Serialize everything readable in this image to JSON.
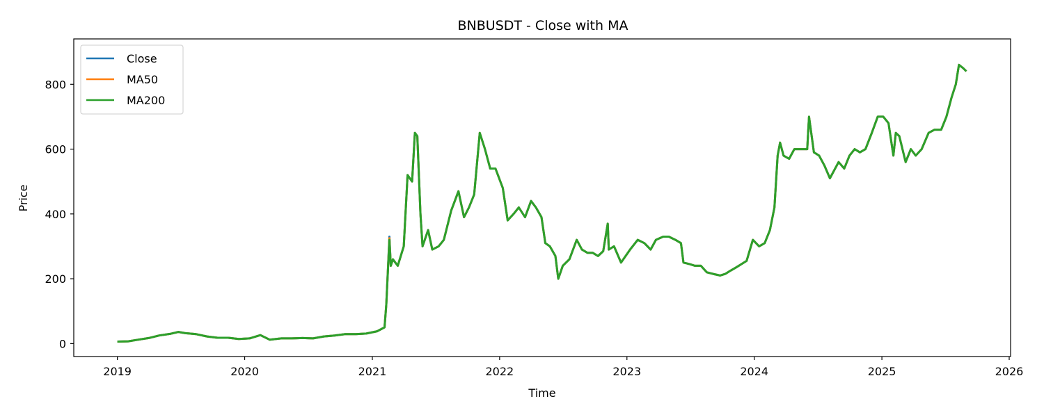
{
  "chart_data": {
    "type": "line",
    "title": "BNBUSDT - Close with MA",
    "xlabel": "Time",
    "ylabel": "Price",
    "xlim": [
      "2018-08-29",
      "2026-01-05"
    ],
    "ylim": [
      -40,
      940
    ],
    "x_ticks": [
      "2019",
      "2020",
      "2021",
      "2022",
      "2023",
      "2024",
      "2025",
      "2026"
    ],
    "y_ticks": [
      0,
      200,
      400,
      600,
      800
    ],
    "grid": false,
    "legend": "top-left",
    "colors": {
      "Close": "#1f77b4",
      "MA50": "#ff7f0e",
      "MA200": "#2ca02c"
    },
    "series": [
      {
        "name": "Close",
        "x": [
          "2019-01-01",
          "2019-02-01",
          "2019-03-01",
          "2019-04-01",
          "2019-05-01",
          "2019-06-01",
          "2019-06-25",
          "2019-07-15",
          "2019-08-15",
          "2019-09-15",
          "2019-10-15",
          "2019-11-15",
          "2019-12-15",
          "2020-01-15",
          "2020-02-15",
          "2020-03-13",
          "2020-04-15",
          "2020-05-15",
          "2020-06-15",
          "2020-07-15",
          "2020-08-15",
          "2020-09-15",
          "2020-10-15",
          "2020-11-15",
          "2020-12-15",
          "2021-01-15",
          "2021-02-05",
          "2021-02-10",
          "2021-02-19",
          "2021-02-23",
          "2021-03-01",
          "2021-03-15",
          "2021-04-01",
          "2021-04-12",
          "2021-04-25",
          "2021-05-03",
          "2021-05-10",
          "2021-05-19",
          "2021-05-25",
          "2021-06-10",
          "2021-06-22",
          "2021-07-10",
          "2021-07-25",
          "2021-08-15",
          "2021-09-05",
          "2021-09-21",
          "2021-10-05",
          "2021-10-20",
          "2021-11-05",
          "2021-11-20",
          "2021-12-05",
          "2021-12-20",
          "2022-01-10",
          "2022-01-24",
          "2022-02-10",
          "2022-02-25",
          "2022-03-15",
          "2022-04-01",
          "2022-04-15",
          "2022-05-01",
          "2022-05-12",
          "2022-05-25",
          "2022-06-10",
          "2022-06-18",
          "2022-07-01",
          "2022-07-20",
          "2022-08-10",
          "2022-08-25",
          "2022-09-10",
          "2022-09-25",
          "2022-10-10",
          "2022-10-25",
          "2022-11-07",
          "2022-11-10",
          "2022-11-25",
          "2022-12-15",
          "2023-01-10",
          "2023-02-01",
          "2023-02-20",
          "2023-03-10",
          "2023-03-25",
          "2023-04-15",
          "2023-05-01",
          "2023-05-20",
          "2023-06-05",
          "2023-06-12",
          "2023-06-30",
          "2023-07-15",
          "2023-08-01",
          "2023-08-18",
          "2023-09-05",
          "2023-09-25",
          "2023-10-10",
          "2023-10-25",
          "2023-11-10",
          "2023-11-25",
          "2023-12-10",
          "2023-12-28",
          "2024-01-15",
          "2024-01-31",
          "2024-02-15",
          "2024-02-28",
          "2024-03-08",
          "2024-03-15",
          "2024-03-25",
          "2024-04-10",
          "2024-04-25",
          "2024-05-15",
          "2024-06-01",
          "2024-06-06",
          "2024-06-20",
          "2024-07-05",
          "2024-07-20",
          "2024-08-05",
          "2024-08-15",
          "2024-08-30",
          "2024-09-15",
          "2024-09-30",
          "2024-10-15",
          "2024-10-30",
          "2024-11-15",
          "2024-12-03",
          "2024-12-20",
          "2025-01-05",
          "2025-01-20",
          "2025-02-03",
          "2025-02-10",
          "2025-02-20",
          "2025-03-10",
          "2025-03-25",
          "2025-04-08",
          "2025-04-25",
          "2025-05-15",
          "2025-06-01",
          "2025-06-20",
          "2025-07-05",
          "2025-07-20",
          "2025-08-01",
          "2025-08-10",
          "2025-08-22",
          "2025-08-31"
        ],
        "y": [
          6,
          7,
          12,
          17,
          25,
          30,
          36,
          32,
          29,
          22,
          18,
          18,
          14,
          16,
          26,
          12,
          16,
          16,
          17,
          16,
          22,
          25,
          29,
          29,
          31,
          38,
          50,
          120,
          330,
          240,
          260,
          240,
          300,
          520,
          500,
          650,
          640,
          400,
          300,
          350,
          290,
          300,
          320,
          410,
          470,
          390,
          420,
          460,
          650,
          600,
          540,
          540,
          480,
          380,
          400,
          420,
          390,
          440,
          420,
          390,
          310,
          300,
          270,
          200,
          240,
          260,
          320,
          290,
          280,
          280,
          270,
          285,
          370,
          290,
          300,
          250,
          290,
          320,
          310,
          290,
          320,
          330,
          330,
          320,
          310,
          250,
          245,
          240,
          240,
          220,
          215,
          210,
          215,
          225,
          235,
          245,
          255,
          320,
          300,
          310,
          350,
          420,
          580,
          620,
          580,
          570,
          600,
          600,
          600,
          700,
          590,
          580,
          550,
          510,
          530,
          560,
          540,
          580,
          600,
          590,
          600,
          650,
          700,
          700,
          680,
          580,
          650,
          640,
          560,
          600,
          580,
          600,
          650,
          660,
          660,
          700,
          760,
          800,
          860,
          850,
          840
        ]
      },
      {
        "name": "MA50",
        "x": [
          "2019-01-01",
          "2019-02-01",
          "2019-03-01",
          "2019-04-01",
          "2019-05-01",
          "2019-06-01",
          "2019-06-25",
          "2019-07-15",
          "2019-08-15",
          "2019-09-15",
          "2019-10-15",
          "2019-11-15",
          "2019-12-15",
          "2020-01-15",
          "2020-02-15",
          "2020-03-13",
          "2020-04-15",
          "2020-05-15",
          "2020-06-15",
          "2020-07-15",
          "2020-08-15",
          "2020-09-15",
          "2020-10-15",
          "2020-11-15",
          "2020-12-15",
          "2021-01-15",
          "2021-02-05",
          "2021-02-10",
          "2021-02-19",
          "2021-02-23",
          "2021-03-01",
          "2021-03-15",
          "2021-04-01",
          "2021-04-12",
          "2021-04-25",
          "2021-05-03",
          "2021-05-10",
          "2021-05-19",
          "2021-05-25",
          "2021-06-10",
          "2021-06-22",
          "2021-07-10",
          "2021-07-25",
          "2021-08-15",
          "2021-09-05",
          "2021-09-21",
          "2021-10-05",
          "2021-10-20",
          "2021-11-05",
          "2021-11-20",
          "2021-12-05",
          "2021-12-20",
          "2022-01-10",
          "2022-01-24",
          "2022-02-10",
          "2022-02-25",
          "2022-03-15",
          "2022-04-01",
          "2022-04-15",
          "2022-05-01",
          "2022-05-12",
          "2022-05-25",
          "2022-06-10",
          "2022-06-18",
          "2022-07-01",
          "2022-07-20",
          "2022-08-10",
          "2022-08-25",
          "2022-09-10",
          "2022-09-25",
          "2022-10-10",
          "2022-10-25",
          "2022-11-07",
          "2022-11-10",
          "2022-11-25",
          "2022-12-15",
          "2023-01-10",
          "2023-02-01",
          "2023-02-20",
          "2023-03-10",
          "2023-03-25",
          "2023-04-15",
          "2023-05-01",
          "2023-05-20",
          "2023-06-05",
          "2023-06-12",
          "2023-06-30",
          "2023-07-15",
          "2023-08-01",
          "2023-08-18",
          "2023-09-05",
          "2023-09-25",
          "2023-10-10",
          "2023-10-25",
          "2023-11-10",
          "2023-11-25",
          "2023-12-10",
          "2023-12-28",
          "2024-01-15",
          "2024-01-31",
          "2024-02-15",
          "2024-02-28",
          "2024-03-08",
          "2024-03-15",
          "2024-03-25",
          "2024-04-10",
          "2024-04-25",
          "2024-05-15",
          "2024-06-01",
          "2024-06-06",
          "2024-06-20",
          "2024-07-05",
          "2024-07-20",
          "2024-08-05",
          "2024-08-15",
          "2024-08-30",
          "2024-09-15",
          "2024-09-30",
          "2024-10-15",
          "2024-10-30",
          "2024-11-15",
          "2024-12-03",
          "2024-12-20",
          "2025-01-05",
          "2025-01-20",
          "2025-02-03",
          "2025-02-10",
          "2025-02-20",
          "2025-03-10",
          "2025-03-25",
          "2025-04-08",
          "2025-04-25",
          "2025-05-15",
          "2025-06-01",
          "2025-06-20",
          "2025-07-05",
          "2025-07-20",
          "2025-08-01",
          "2025-08-10",
          "2025-08-22",
          "2025-08-31"
        ],
        "y": [
          6,
          7,
          12,
          17,
          25,
          30,
          36,
          32,
          29,
          22,
          18,
          18,
          14,
          16,
          26,
          12,
          16,
          16,
          17,
          16,
          22,
          25,
          29,
          29,
          31,
          38,
          50,
          120,
          325,
          240,
          260,
          240,
          300,
          520,
          500,
          650,
          640,
          400,
          300,
          350,
          290,
          300,
          320,
          410,
          470,
          390,
          420,
          460,
          650,
          600,
          540,
          540,
          480,
          380,
          400,
          420,
          390,
          440,
          420,
          390,
          310,
          300,
          270,
          200,
          240,
          260,
          320,
          290,
          280,
          280,
          270,
          285,
          370,
          290,
          300,
          250,
          290,
          320,
          310,
          290,
          320,
          330,
          330,
          320,
          310,
          250,
          245,
          240,
          240,
          220,
          215,
          210,
          215,
          225,
          235,
          245,
          255,
          320,
          300,
          310,
          350,
          420,
          580,
          620,
          580,
          570,
          600,
          600,
          600,
          700,
          590,
          580,
          550,
          510,
          530,
          560,
          540,
          580,
          600,
          590,
          600,
          650,
          700,
          700,
          680,
          580,
          650,
          640,
          560,
          600,
          580,
          600,
          650,
          660,
          660,
          700,
          760,
          800,
          860,
          850,
          840
        ]
      },
      {
        "name": "MA200",
        "x": [
          "2019-01-01",
          "2019-02-01",
          "2019-03-01",
          "2019-04-01",
          "2019-05-01",
          "2019-06-01",
          "2019-06-25",
          "2019-07-15",
          "2019-08-15",
          "2019-09-15",
          "2019-10-15",
          "2019-11-15",
          "2019-12-15",
          "2020-01-15",
          "2020-02-15",
          "2020-03-13",
          "2020-04-15",
          "2020-05-15",
          "2020-06-15",
          "2020-07-15",
          "2020-08-15",
          "2020-09-15",
          "2020-10-15",
          "2020-11-15",
          "2020-12-15",
          "2021-01-15",
          "2021-02-05",
          "2021-02-10",
          "2021-02-19",
          "2021-02-23",
          "2021-03-01",
          "2021-03-15",
          "2021-04-01",
          "2021-04-12",
          "2021-04-25",
          "2021-05-03",
          "2021-05-10",
          "2021-05-19",
          "2021-05-25",
          "2021-06-10",
          "2021-06-22",
          "2021-07-10",
          "2021-07-25",
          "2021-08-15",
          "2021-09-05",
          "2021-09-21",
          "2021-10-05",
          "2021-10-20",
          "2021-11-05",
          "2021-11-20",
          "2021-12-05",
          "2021-12-20",
          "2022-01-10",
          "2022-01-24",
          "2022-02-10",
          "2022-02-25",
          "2022-03-15",
          "2022-04-01",
          "2022-04-15",
          "2022-05-01",
          "2022-05-12",
          "2022-05-25",
          "2022-06-10",
          "2022-06-18",
          "2022-07-01",
          "2022-07-20",
          "2022-08-10",
          "2022-08-25",
          "2022-09-10",
          "2022-09-25",
          "2022-10-10",
          "2022-10-25",
          "2022-11-07",
          "2022-11-10",
          "2022-11-25",
          "2022-12-15",
          "2023-01-10",
          "2023-02-01",
          "2023-02-20",
          "2023-03-10",
          "2023-03-25",
          "2023-04-15",
          "2023-05-01",
          "2023-05-20",
          "2023-06-05",
          "2023-06-12",
          "2023-06-30",
          "2023-07-15",
          "2023-08-01",
          "2023-08-18",
          "2023-09-05",
          "2023-09-25",
          "2023-10-10",
          "2023-10-25",
          "2023-11-10",
          "2023-11-25",
          "2023-12-10",
          "2023-12-28",
          "2024-01-15",
          "2024-01-31",
          "2024-02-15",
          "2024-02-28",
          "2024-03-08",
          "2024-03-15",
          "2024-03-25",
          "2024-04-10",
          "2024-04-25",
          "2024-05-15",
          "2024-06-01",
          "2024-06-06",
          "2024-06-20",
          "2024-07-05",
          "2024-07-20",
          "2024-08-05",
          "2024-08-15",
          "2024-08-30",
          "2024-09-15",
          "2024-09-30",
          "2024-10-15",
          "2024-10-30",
          "2024-11-15",
          "2024-12-03",
          "2024-12-20",
          "2025-01-05",
          "2025-01-20",
          "2025-02-03",
          "2025-02-10",
          "2025-02-20",
          "2025-03-10",
          "2025-03-25",
          "2025-04-08",
          "2025-04-25",
          "2025-05-15",
          "2025-06-01",
          "2025-06-20",
          "2025-07-05",
          "2025-07-20",
          "2025-08-01",
          "2025-08-10",
          "2025-08-22",
          "2025-08-31"
        ],
        "y": [
          6,
          7,
          12,
          17,
          25,
          30,
          36,
          32,
          29,
          22,
          18,
          18,
          14,
          16,
          26,
          12,
          16,
          16,
          17,
          16,
          22,
          25,
          29,
          29,
          31,
          38,
          50,
          120,
          320,
          240,
          260,
          240,
          300,
          520,
          500,
          650,
          640,
          400,
          300,
          350,
          290,
          300,
          320,
          410,
          470,
          390,
          420,
          460,
          650,
          600,
          540,
          540,
          480,
          380,
          400,
          420,
          390,
          440,
          420,
          390,
          310,
          300,
          270,
          200,
          240,
          260,
          320,
          290,
          280,
          280,
          270,
          285,
          370,
          290,
          300,
          250,
          290,
          320,
          310,
          290,
          320,
          330,
          330,
          320,
          310,
          250,
          245,
          240,
          240,
          220,
          215,
          210,
          215,
          225,
          235,
          245,
          255,
          320,
          300,
          310,
          350,
          420,
          580,
          620,
          580,
          570,
          600,
          600,
          600,
          700,
          590,
          580,
          550,
          510,
          530,
          560,
          540,
          580,
          600,
          590,
          600,
          650,
          700,
          700,
          680,
          580,
          650,
          640,
          560,
          600,
          580,
          600,
          650,
          660,
          660,
          700,
          760,
          800,
          860,
          850,
          840
        ]
      }
    ]
  }
}
